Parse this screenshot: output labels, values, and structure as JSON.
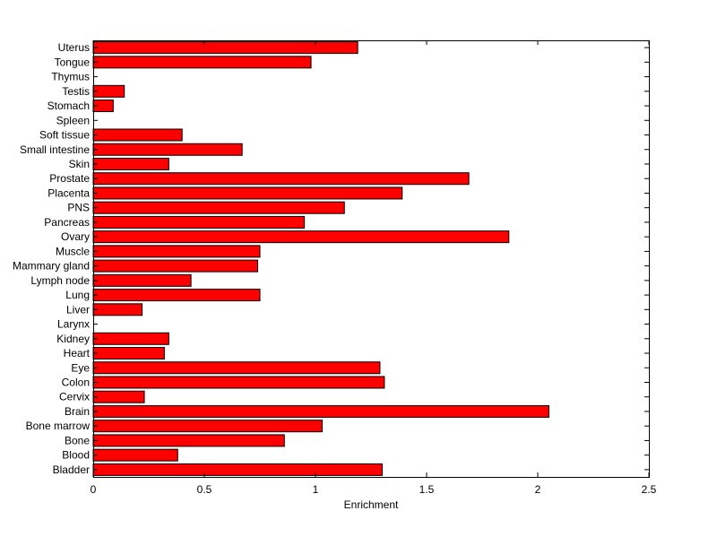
{
  "chart_data": {
    "type": "bar",
    "orientation": "horizontal",
    "categories": [
      "Uterus",
      "Tongue",
      "Thymus",
      "Testis",
      "Stomach",
      "Spleen",
      "Soft tissue",
      "Small intestine",
      "Skin",
      "Prostate",
      "Placenta",
      "PNS",
      "Pancreas",
      "Ovary",
      "Muscle",
      "Mammary gland",
      "Lymph node",
      "Lung",
      "Liver",
      "Larynx",
      "Kidney",
      "Heart",
      "Eye",
      "Colon",
      "Cervix",
      "Brain",
      "Bone marrow",
      "Bone",
      "Blood",
      "Bladder"
    ],
    "values": [
      1.19,
      0.98,
      0,
      0.14,
      0.09,
      0,
      0.4,
      0.67,
      0.34,
      1.69,
      1.39,
      1.13,
      0.95,
      1.87,
      0.75,
      0.74,
      0.44,
      0.75,
      0.22,
      0,
      0.34,
      0.32,
      1.29,
      1.31,
      0.23,
      2.05,
      1.03,
      0.86,
      0.38,
      1.3
    ],
    "xlabel": "Enrichment",
    "ylabel": "",
    "title": "",
    "xlim": [
      0,
      2.5
    ],
    "xticks": [
      0,
      0.5,
      1,
      1.5,
      2,
      2.5
    ],
    "xtick_labels": [
      "0",
      "0.5",
      "1",
      "1.5",
      "2",
      "2.5"
    ],
    "bar_color": "#ff0000",
    "grid": false,
    "legend": "none"
  }
}
